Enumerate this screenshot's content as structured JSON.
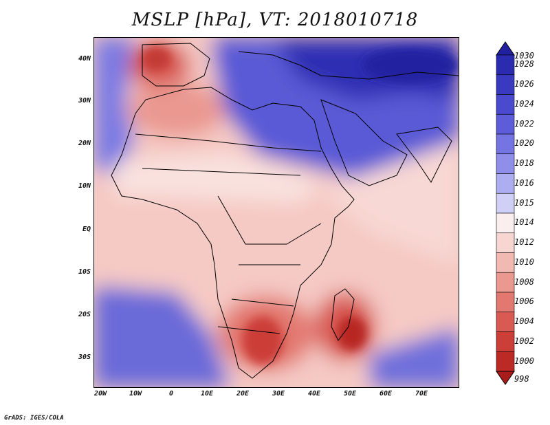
{
  "title": "MSLP [hPa], VT: 2018010718",
  "credit": "GrADS: IGES/COLA",
  "lat_labels": [
    "40N",
    "30N",
    "20N",
    "10N",
    "EQ",
    "10S",
    "20S",
    "30S"
  ],
  "lon_labels": [
    "20W",
    "10W",
    "0",
    "10E",
    "20E",
    "30E",
    "40E",
    "50E",
    "60E",
    "70E"
  ],
  "colorbar": [
    {
      "label": "1030",
      "color": "#2020a0"
    },
    {
      "label": "1028",
      "color": "#2b2bb0"
    },
    {
      "label": "1026",
      "color": "#3a3ac0"
    },
    {
      "label": "1024",
      "color": "#4a4ace"
    },
    {
      "label": "1022",
      "color": "#5d5dd9"
    },
    {
      "label": "1020",
      "color": "#7474e2"
    },
    {
      "label": "1018",
      "color": "#8f8fea"
    },
    {
      "label": "1016",
      "color": "#adadf1"
    },
    {
      "label": "1015",
      "color": "#d0d0f7"
    },
    {
      "label": "1014",
      "color": "#fbeeee"
    },
    {
      "label": "1012",
      "color": "#f7d6d2"
    },
    {
      "label": "1010",
      "color": "#f2b8b2"
    },
    {
      "label": "1008",
      "color": "#ea9890"
    },
    {
      "label": "1006",
      "color": "#e27870"
    },
    {
      "label": "1004",
      "color": "#d85a52"
    },
    {
      "label": "1002",
      "color": "#cc3e38"
    },
    {
      "label": "1000",
      "color": "#bc2a26"
    },
    {
      "label": "998",
      "color": "#a81d1b"
    }
  ]
}
